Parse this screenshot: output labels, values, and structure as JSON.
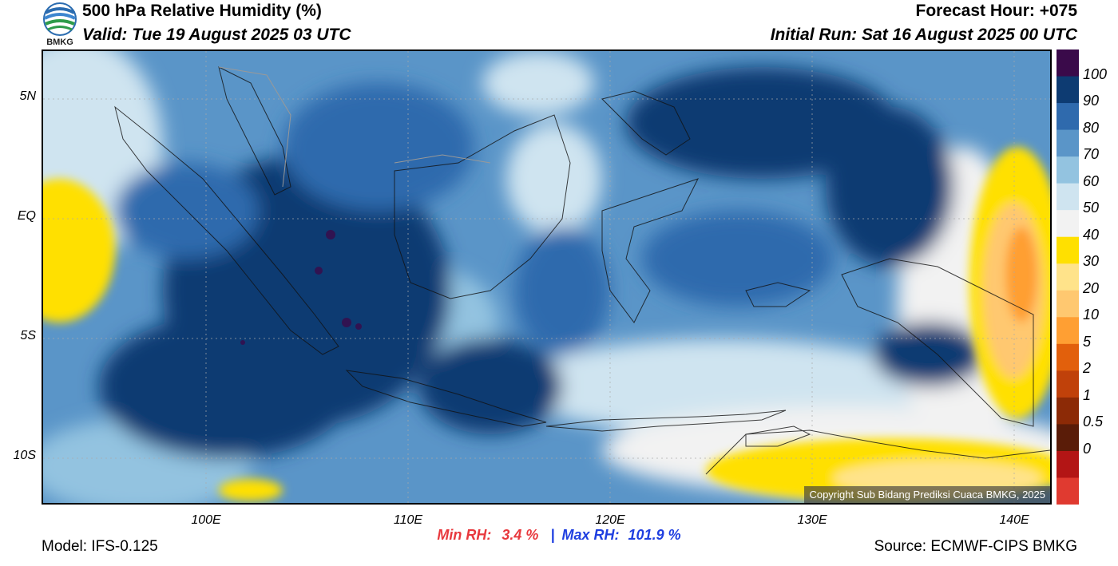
{
  "header": {
    "title": "500 hPa Relative Humidity (%)",
    "valid": "Valid: Tue 19 August 2025 03 UTC",
    "forecast_hour": "Forecast Hour: +075",
    "initial_run": "Initial Run: Sat 16 August 2025 00 UTC",
    "logo_text": "BMKG"
  },
  "map": {
    "lat_labels": [
      "5N",
      "EQ",
      "5S",
      "10S"
    ],
    "lon_labels": [
      "100E",
      "110E",
      "120E",
      "130E",
      "140E"
    ],
    "copyright": "Copyright Sub Bidang Prediksi Cuaca BMKG, 2025"
  },
  "colorbar": {
    "labels": [
      "100",
      "90",
      "80",
      "70",
      "60",
      "50",
      "40",
      "30",
      "20",
      "10",
      "5",
      "2",
      "1",
      "0.5",
      "0"
    ],
    "colors": [
      "#3a0a4a",
      "#0d3b72",
      "#2f6aad",
      "#5a95c8",
      "#93c3e0",
      "#cfe4f0",
      "#f2f2f2",
      "#ffe000",
      "#ffe38a",
      "#ffc870",
      "#ff9f33",
      "#e2600c",
      "#c0410a",
      "#8c2a06",
      "#5a1c08",
      "#b31515",
      "#e03a30"
    ]
  },
  "stats": {
    "min_label": "Min RH:",
    "min_value": "3.4 %",
    "separator": "|",
    "max_label": "Max RH:",
    "max_value": "101.9 %"
  },
  "footer": {
    "model": "Model: IFS-0.125",
    "source": "Source: ECMWF-CIPS BMKG"
  }
}
